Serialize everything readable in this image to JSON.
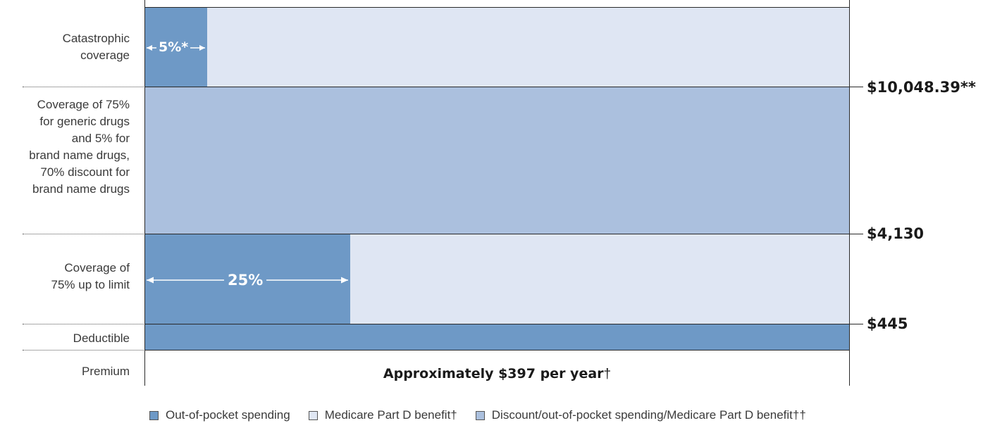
{
  "colors": {
    "out_of_pocket": "#6e99c6",
    "medicare_benefit": "#dfe6f3",
    "discount": "#abc0de"
  },
  "tiers": {
    "catastrophic": {
      "label_lines": [
        "Catastrophic",
        "coverage"
      ],
      "percent_label": "5%*"
    },
    "gap": {
      "label_lines": [
        "Coverage of 75%",
        "for generic drugs",
        "and 5% for",
        "brand name drugs,",
        "70% discount for",
        "brand name drugs"
      ]
    },
    "initial": {
      "label_lines": [
        "Coverage of",
        "75% up to limit"
      ],
      "percent_label": "25%"
    },
    "deductible": {
      "label": "Deductible"
    },
    "premium": {
      "label": "Premium",
      "text_bold": "Approximately $397 per year",
      "text_suffix": "†"
    }
  },
  "thresholds": {
    "catastrophic": "$10,048.39**",
    "initial_limit": "$4,130",
    "deductible": "$445"
  },
  "legend": [
    {
      "label": "Out-of-pocket spending",
      "swatch": "out_of_pocket"
    },
    {
      "label": "Medicare Part D benefit†",
      "swatch": "medicare_benefit"
    },
    {
      "label": "Discount/out-of-pocket spending/Medicare Part D benefit††",
      "swatch": "discount"
    }
  ]
}
